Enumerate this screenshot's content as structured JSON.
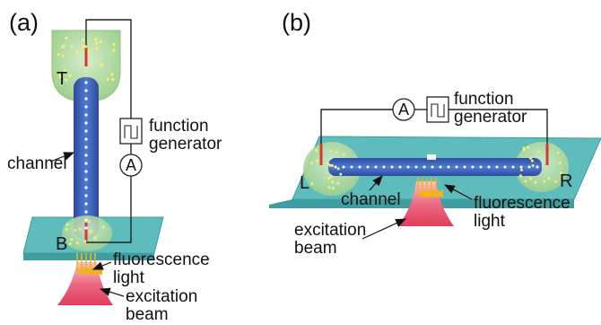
{
  "panels": [
    {
      "label": "(a)",
      "reservoirs": {
        "top": "T",
        "bottom": "B"
      },
      "labels": {
        "channel": "channel",
        "function_generator_line1": "function",
        "function_generator_line2": "generator",
        "ammeter": "A",
        "fluorescence_line1": "fluorescence",
        "fluorescence_line2": "light",
        "excitation_line1": "excitation",
        "excitation_line2": "beam"
      }
    },
    {
      "label": "(b)",
      "reservoirs": {
        "left": "L",
        "right": "R"
      },
      "labels": {
        "channel": "channel",
        "function_generator_line1": "function",
        "function_generator_line2": "generator",
        "ammeter": "A",
        "fluorescence_line1": "fluorescence",
        "fluorescence_line2": "light",
        "excitation_line1": "excitation",
        "excitation_line2": "beam"
      }
    }
  ],
  "colors": {
    "substrate": "#5fbcbd",
    "substrate_edge": "#3e9ea0",
    "reservoir": "#a8d59a",
    "channel": "#3f63b8",
    "channel_dark": "#2a3f8c",
    "beam": "#e8506a",
    "particle": "#f2f07a",
    "particle_in_channel": "#ffffff",
    "electrode": "#d23c2c",
    "wire": "#222222",
    "arrow_fluorescence": "#f2b21a"
  }
}
